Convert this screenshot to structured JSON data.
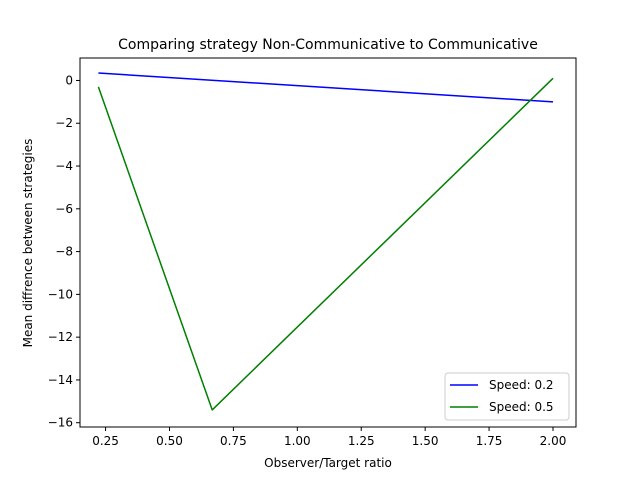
{
  "chart_data": {
    "type": "line",
    "title": "Comparing strategy Non-Communicative to Communicative",
    "xlabel": "Observer/Target ratio",
    "ylabel": "Mean diffrence between strategies",
    "xlim": [
      0.15,
      2.09
    ],
    "ylim": [
      -16.2,
      1.05
    ],
    "xticks": [
      0.25,
      0.5,
      0.75,
      1.0,
      1.25,
      1.5,
      1.75,
      2.0
    ],
    "xtick_labels": [
      "0.25",
      "0.50",
      "0.75",
      "1.00",
      "1.25",
      "1.50",
      "1.75",
      "2.00"
    ],
    "yticks": [
      0,
      -2,
      -4,
      -6,
      -8,
      -10,
      -12,
      -14,
      -16
    ],
    "ytick_labels": [
      "0",
      "−2",
      "−4",
      "−6",
      "−8",
      "−10",
      "−12",
      "−14",
      "−16"
    ],
    "grid": false,
    "legend_position": "lower right",
    "series": [
      {
        "name": "Speed: 0.2",
        "color": "#0000ff",
        "x": [
          0.222,
          2.0
        ],
        "y": [
          0.35,
          -1.0
        ]
      },
      {
        "name": "Speed: 0.5",
        "color": "#008000",
        "x": [
          0.222,
          0.667,
          2.0
        ],
        "y": [
          -0.3,
          -15.4,
          0.1
        ]
      }
    ]
  }
}
